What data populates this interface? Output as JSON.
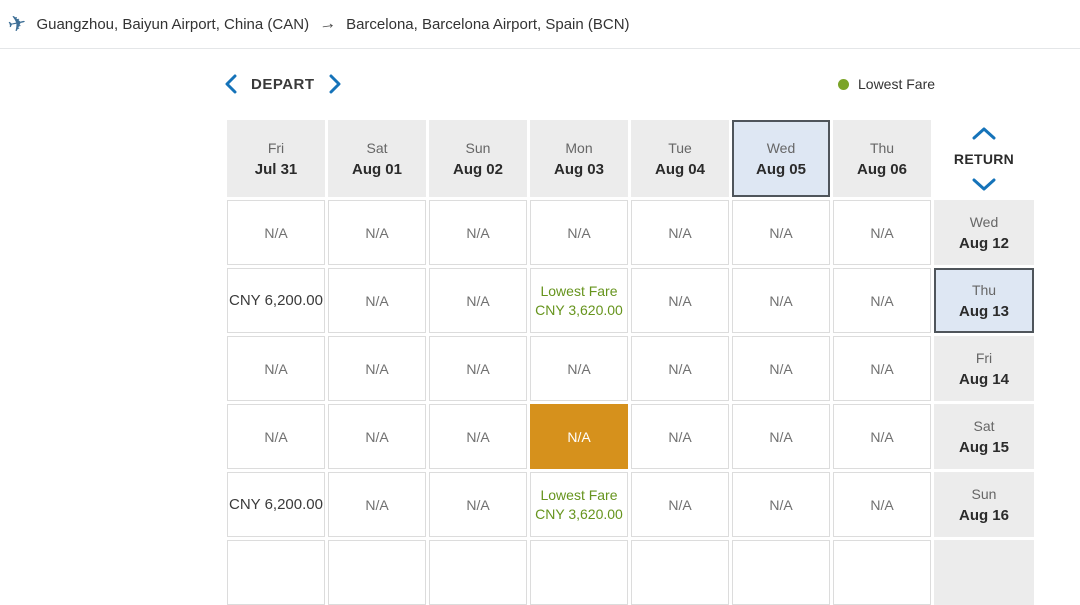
{
  "route_header": {
    "origin": "Guangzhou, Baiyun Airport, China (CAN)",
    "arrow": "→",
    "destination": "Barcelona, Barcelona Airport, Spain (BCN)"
  },
  "controls": {
    "depart_label": "DEPART",
    "return_label": "RETURN"
  },
  "legend": {
    "label": "Lowest Fare",
    "dot_color": "#7ba428"
  },
  "colors": {
    "accent_blue": "#1573b9",
    "lowest_fare_green": "#66941d",
    "selected_na_orange": "#d6911c",
    "selected_day_bg": "#dee7f3",
    "header_cell_bg": "#ececec"
  },
  "calendar": {
    "depart_columns": [
      {
        "day": "Fri",
        "date": "Jul 31",
        "selected": false
      },
      {
        "day": "Sat",
        "date": "Aug 01",
        "selected": false
      },
      {
        "day": "Sun",
        "date": "Aug 02",
        "selected": false
      },
      {
        "day": "Mon",
        "date": "Aug 03",
        "selected": false
      },
      {
        "day": "Tue",
        "date": "Aug 04",
        "selected": false
      },
      {
        "day": "Wed",
        "date": "Aug 05",
        "selected": true
      },
      {
        "day": "Thu",
        "date": "Aug 06",
        "selected": false
      }
    ],
    "rows": [
      {
        "day": "Wed",
        "date": "Aug 12",
        "selected": false,
        "cells": [
          {
            "type": "na",
            "text": "N/A"
          },
          {
            "type": "na",
            "text": "N/A"
          },
          {
            "type": "na",
            "text": "N/A"
          },
          {
            "type": "na",
            "text": "N/A"
          },
          {
            "type": "na",
            "text": "N/A"
          },
          {
            "type": "na",
            "text": "N/A"
          },
          {
            "type": "na",
            "text": "N/A"
          }
        ]
      },
      {
        "day": "Thu",
        "date": "Aug 13",
        "selected": true,
        "cells": [
          {
            "type": "fare",
            "text": "CNY 6,200.00"
          },
          {
            "type": "na",
            "text": "N/A"
          },
          {
            "type": "na",
            "text": "N/A"
          },
          {
            "type": "lowest",
            "label": "Lowest Fare",
            "text": "CNY 3,620.00"
          },
          {
            "type": "na",
            "text": "N/A"
          },
          {
            "type": "na",
            "text": "N/A"
          },
          {
            "type": "na",
            "text": "N/A"
          }
        ]
      },
      {
        "day": "Fri",
        "date": "Aug 14",
        "selected": false,
        "cells": [
          {
            "type": "na",
            "text": "N/A"
          },
          {
            "type": "na",
            "text": "N/A"
          },
          {
            "type": "na",
            "text": "N/A"
          },
          {
            "type": "na",
            "text": "N/A"
          },
          {
            "type": "na",
            "text": "N/A"
          },
          {
            "type": "na",
            "text": "N/A"
          },
          {
            "type": "na",
            "text": "N/A"
          }
        ]
      },
      {
        "day": "Sat",
        "date": "Aug 15",
        "selected": false,
        "cells": [
          {
            "type": "na",
            "text": "N/A"
          },
          {
            "type": "na",
            "text": "N/A"
          },
          {
            "type": "na",
            "text": "N/A"
          },
          {
            "type": "na-selected",
            "text": "N/A"
          },
          {
            "type": "na",
            "text": "N/A"
          },
          {
            "type": "na",
            "text": "N/A"
          },
          {
            "type": "na",
            "text": "N/A"
          }
        ]
      },
      {
        "day": "Sun",
        "date": "Aug 16",
        "selected": false,
        "cells": [
          {
            "type": "fare",
            "text": "CNY 6,200.00"
          },
          {
            "type": "na",
            "text": "N/A"
          },
          {
            "type": "na",
            "text": "N/A"
          },
          {
            "type": "lowest",
            "label": "Lowest Fare",
            "text": "CNY 3,620.00"
          },
          {
            "type": "na",
            "text": "N/A"
          },
          {
            "type": "na",
            "text": "N/A"
          },
          {
            "type": "na",
            "text": "N/A"
          }
        ]
      }
    ]
  }
}
